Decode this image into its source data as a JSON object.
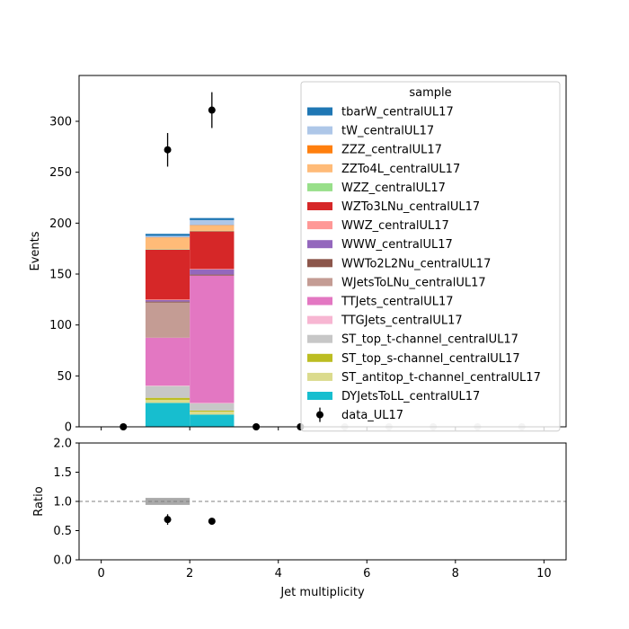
{
  "chart_data": {
    "type": "bar",
    "stacked": true,
    "xlabel": "Jet multiplicity",
    "main": {
      "ylabel": "Events",
      "ylim": [
        0,
        345
      ],
      "yticks": [
        0,
        50,
        100,
        150,
        200,
        250,
        300
      ]
    },
    "ratio": {
      "ylabel": "Ratio",
      "ylim": [
        0,
        2
      ],
      "yticks": [
        "0.0",
        "0.5",
        "1.0",
        "1.5",
        "2.0"
      ],
      "reference_line": 1.0,
      "points": [
        {
          "x": 1.5,
          "y": 0.69,
          "err": 0.09
        },
        {
          "x": 2.5,
          "y": 0.66,
          "err": 0
        }
      ],
      "uncertainty_bands": [
        {
          "x0": 1,
          "x1": 2,
          "lo": 0.94,
          "hi": 1.06
        }
      ]
    },
    "xlim": [
      -0.5,
      10.5
    ],
    "xticks": [
      "0",
      "2",
      "4",
      "6",
      "8",
      "10"
    ],
    "bins": [
      [
        1,
        2
      ],
      [
        2,
        3
      ]
    ],
    "legend": {
      "title": "sample",
      "position": "upper right"
    },
    "series": [
      {
        "name": "DYJetsToLL_centralUL17",
        "color": "#17becf",
        "values": [
          23.5,
          12
        ]
      },
      {
        "name": "ST_antitop_t-channel_centralUL17",
        "color": "#dbdb8d",
        "values": [
          3,
          3
        ]
      },
      {
        "name": "ST_top_s-channel_centralUL17",
        "color": "#bcbd22",
        "values": [
          2,
          1
        ]
      },
      {
        "name": "ST_top_t-channel_centralUL17",
        "color": "#c7c7c7",
        "values": [
          11.5,
          7
        ]
      },
      {
        "name": "TTGJets_centralUL17",
        "color": "#f7b6d2",
        "values": [
          0.5,
          0.5
        ]
      },
      {
        "name": "TTJets_centralUL17",
        "color": "#e377c2",
        "values": [
          47,
          125
        ]
      },
      {
        "name": "WJetsToLNu_centralUL17",
        "color": "#c49c94",
        "values": [
          34.5,
          0
        ]
      },
      {
        "name": "WWTo2L2Nu_centralUL17",
        "color": "#8c564b",
        "values": [
          1,
          1
        ]
      },
      {
        "name": "WWW_centralUL17",
        "color": "#9467bd",
        "values": [
          1.5,
          5
        ]
      },
      {
        "name": "WWZ_centralUL17",
        "color": "#ff9896",
        "values": [
          0.5,
          0.5
        ]
      },
      {
        "name": "WZTo3LNu_centralUL17",
        "color": "#d62728",
        "values": [
          49,
          37
        ]
      },
      {
        "name": "WZZ_centralUL17",
        "color": "#98df8a",
        "values": [
          0.5,
          0.5
        ]
      },
      {
        "name": "ZZTo4L_centralUL17",
        "color": "#ffbb78",
        "values": [
          11,
          5
        ]
      },
      {
        "name": "ZZZ_centralUL17",
        "color": "#ff7f0e",
        "values": [
          0.5,
          0.5
        ]
      },
      {
        "name": "tW_centralUL17",
        "color": "#aec7e8",
        "values": [
          1.5,
          5
        ]
      },
      {
        "name": "tbarW_centralUL17",
        "color": "#1f77b4",
        "values": [
          2,
          2
        ]
      }
    ],
    "data": {
      "name": "data_UL17",
      "color": "#000000",
      "points": [
        {
          "x": 0.5,
          "y": 0,
          "err": 0
        },
        {
          "x": 1.5,
          "y": 272,
          "err": 16.5
        },
        {
          "x": 2.5,
          "y": 311,
          "err": 17.6
        },
        {
          "x": 3.5,
          "y": 0,
          "err": 0
        },
        {
          "x": 4.5,
          "y": 0,
          "err": 0
        }
      ],
      "faded_points_x": [
        5.5,
        6.5,
        7.5,
        8.5,
        9.5
      ],
      "faded_color": "#c8c8c8"
    }
  }
}
